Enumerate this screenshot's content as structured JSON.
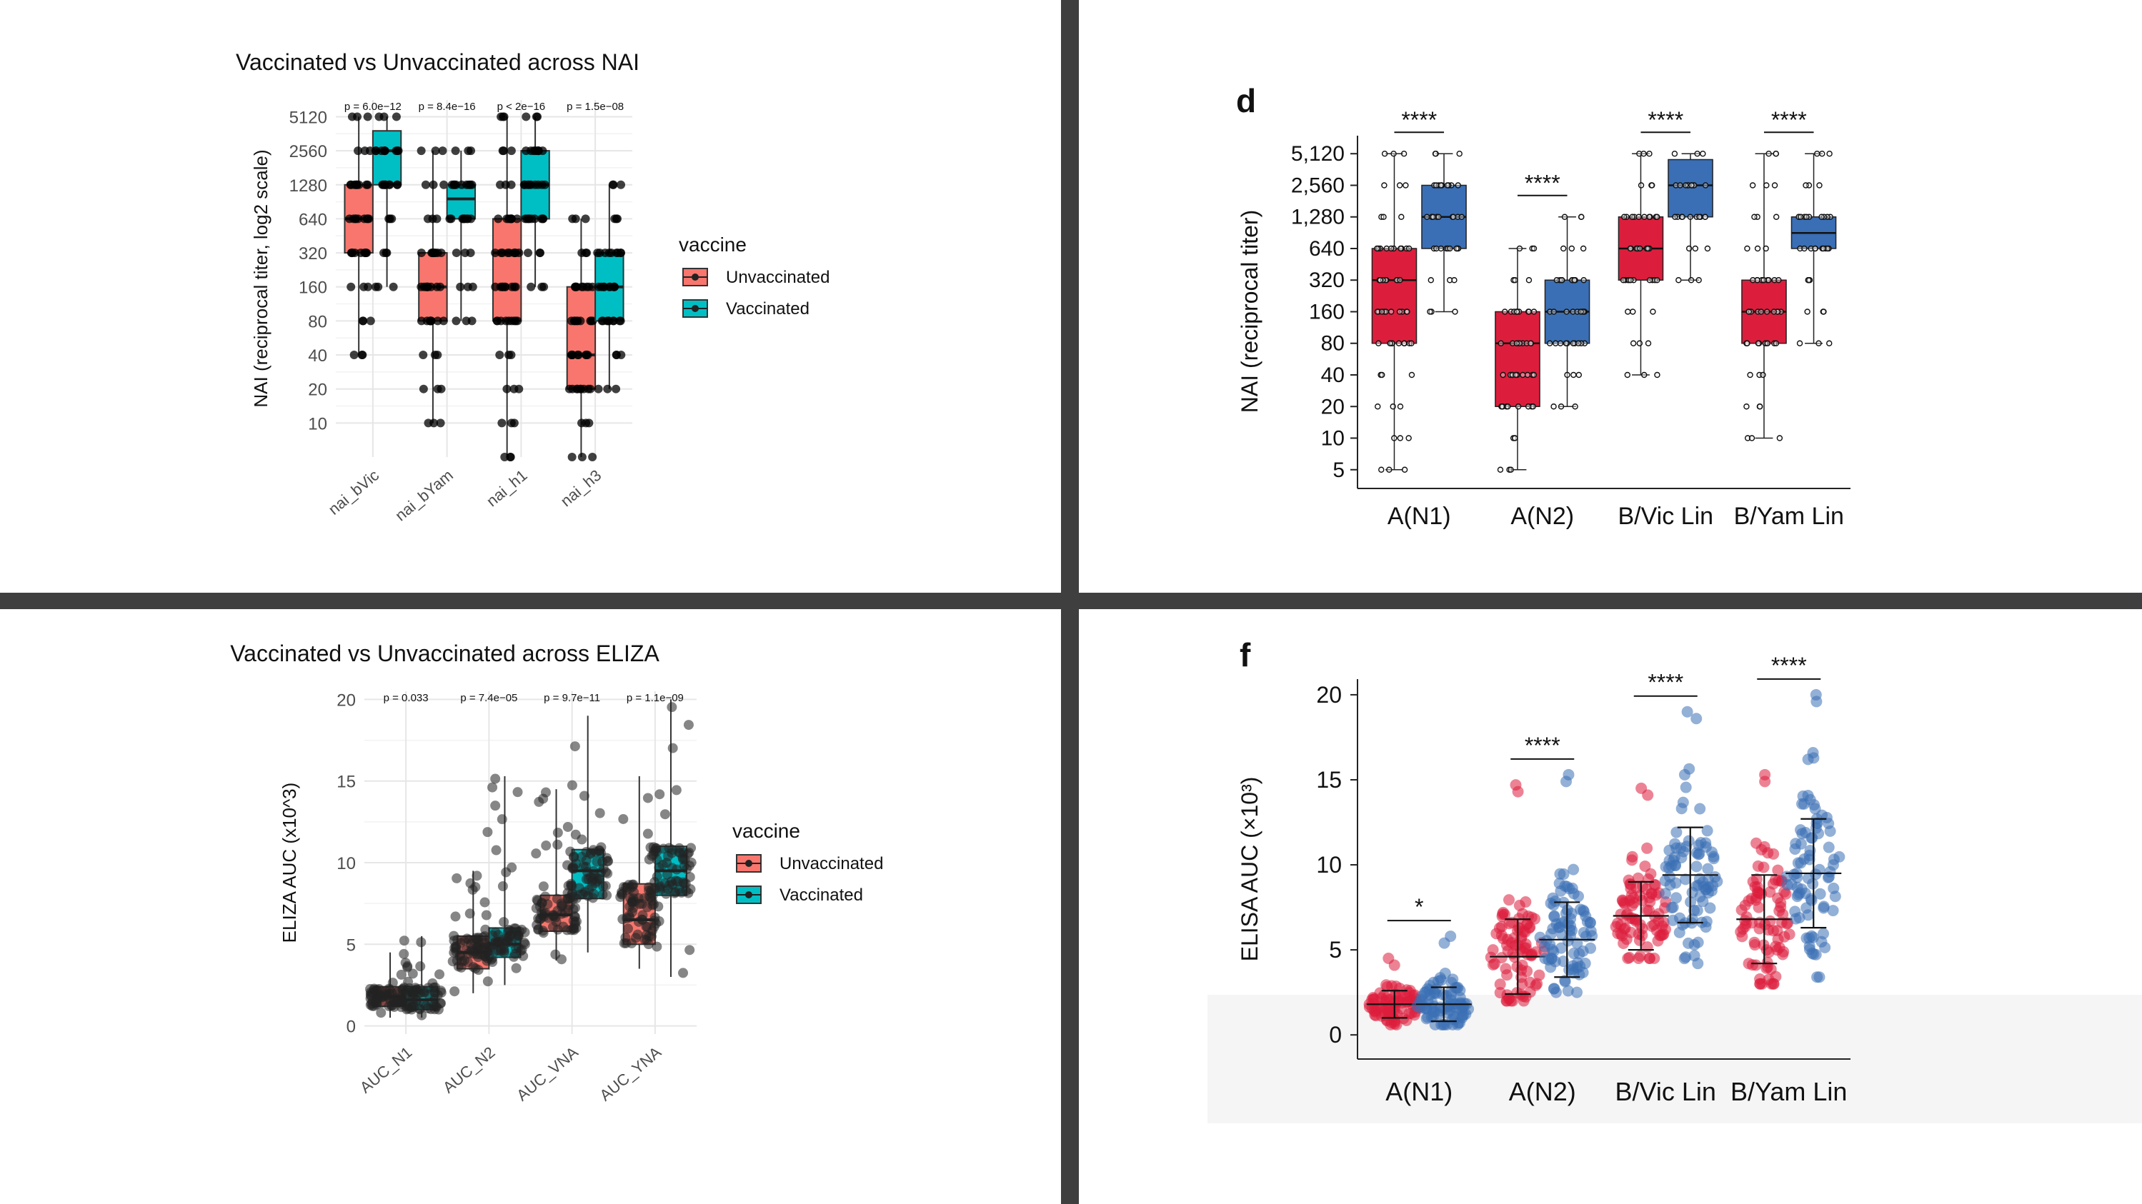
{
  "colors": {
    "r_unvacc": "#F8766D",
    "r_vacc": "#00BFC4",
    "pub_unvacc": "#DC1E3C",
    "pub_vacc": "#3A6FB5",
    "divider": "#3f3f3f"
  },
  "chart_data": [
    {
      "id": "nai_r",
      "type": "box",
      "title": "Vaccinated vs Unvaccinated across NAI",
      "ylabel": "NAI (reciprocal titer, log2 scale)",
      "yscale": "log2",
      "yticks": [
        10,
        20,
        40,
        80,
        160,
        320,
        640,
        1280,
        2560,
        5120
      ],
      "ytick_labels": [
        "10",
        "20",
        "40",
        "80",
        "160",
        "320",
        "640",
        "1280",
        "2560",
        "5120"
      ],
      "ylim": [
        5,
        7200
      ],
      "categories": [
        "nai_bVic",
        "nai_bYam",
        "nai_h1",
        "nai_h3"
      ],
      "pvalues": [
        "p = 6.0e−12",
        "p = 8.4e−16",
        "p < 2e−16",
        "p = 1.5e−08"
      ],
      "legend_title": "vaccine",
      "legend": [
        "Unvaccinated",
        "Vaccinated"
      ],
      "series": [
        {
          "name": "Unvaccinated",
          "boxes": [
            {
              "min": 40,
              "q1": 320,
              "med": 640,
              "q3": 1280,
              "max": 5120
            },
            {
              "min": 10,
              "q1": 80,
              "med": 160,
              "q3": 320,
              "max": 2560
            },
            {
              "min": 5,
              "q1": 80,
              "med": 320,
              "q3": 640,
              "max": 5120
            },
            {
              "min": 5,
              "q1": 20,
              "med": 40,
              "q3": 160,
              "max": 640
            }
          ]
        },
        {
          "name": "Vaccinated",
          "boxes": [
            {
              "min": 160,
              "q1": 1280,
              "med": 2560,
              "q3": 3840,
              "max": 5120
            },
            {
              "min": 80,
              "q1": 640,
              "med": 960,
              "q3": 1280,
              "max": 2560
            },
            {
              "min": 160,
              "q1": 640,
              "med": 1280,
              "q3": 2560,
              "max": 5120
            },
            {
              "min": 20,
              "q1": 80,
              "med": 160,
              "q3": 320,
              "max": 1280
            }
          ]
        }
      ]
    },
    {
      "id": "nai_pub",
      "type": "box",
      "panel_letter": "d",
      "ylabel": "NAI (reciprocal titer)",
      "yscale": "log2",
      "yticks": [
        5,
        10,
        20,
        40,
        80,
        160,
        320,
        640,
        1280,
        2560,
        5120
      ],
      "ytick_labels": [
        "5",
        "10",
        "20",
        "40",
        "80",
        "160",
        "320",
        "640",
        "1,280",
        "2,560",
        "5,120"
      ],
      "ylim": [
        4,
        6500
      ],
      "categories": [
        "A(N1)",
        "A(N2)",
        "B/Vic Lin",
        "B/Yam Lin"
      ],
      "significance": [
        "****",
        "****",
        "****",
        "****"
      ],
      "series": [
        {
          "name": "Unvaccinated",
          "boxes": [
            {
              "min": 5,
              "q1": 80,
              "med": 320,
              "q3": 640,
              "max": 5120
            },
            {
              "min": 5,
              "q1": 20,
              "med": 80,
              "q3": 160,
              "max": 640
            },
            {
              "min": 40,
              "q1": 320,
              "med": 640,
              "q3": 1280,
              "max": 5120
            },
            {
              "min": 10,
              "q1": 80,
              "med": 160,
              "q3": 320,
              "max": 5120
            }
          ]
        },
        {
          "name": "Vaccinated",
          "boxes": [
            {
              "min": 160,
              "q1": 640,
              "med": 1280,
              "q3": 2560,
              "max": 5120
            },
            {
              "min": 20,
              "q1": 80,
              "med": 160,
              "q3": 320,
              "max": 1280
            },
            {
              "min": 320,
              "q1": 1280,
              "med": 2560,
              "q3": 4500,
              "max": 5120
            },
            {
              "min": 80,
              "q1": 640,
              "med": 900,
              "q3": 1280,
              "max": 5120
            }
          ]
        }
      ]
    },
    {
      "id": "eliza_r",
      "type": "box",
      "title": "Vaccinated vs Unvaccinated across ELIZA",
      "ylabel": "ELIZA AUC (x10^3)",
      "yscale": "linear",
      "yticks": [
        0,
        5,
        10,
        15,
        20
      ],
      "ytick_labels": [
        "0",
        "5",
        "10",
        "15",
        "20"
      ],
      "ylim": [
        -0.5,
        20.5
      ],
      "categories": [
        "AUC_N1",
        "AUC_N2",
        "AUC_VNA",
        "AUC_YNA"
      ],
      "pvalues": [
        "p = 0.033",
        "p = 7.4e−05",
        "p = 9.7e−11",
        "p = 1.1e−09"
      ],
      "legend_title": "vaccine",
      "legend": [
        "Unvaccinated",
        "Vaccinated"
      ],
      "series": [
        {
          "name": "Unvaccinated",
          "boxes": [
            {
              "min": 0.5,
              "q1": 1.2,
              "med": 1.8,
              "q3": 2.4,
              "max": 4.5
            },
            {
              "min": 2.0,
              "q1": 3.5,
              "med": 4.5,
              "q3": 5.5,
              "max": 9.5
            },
            {
              "min": 4.0,
              "q1": 5.8,
              "med": 6.8,
              "q3": 8.0,
              "max": 14.5
            },
            {
              "min": 3.5,
              "q1": 5.0,
              "med": 6.5,
              "q3": 8.7,
              "max": 15.3
            }
          ]
        },
        {
          "name": "Vaccinated",
          "boxes": [
            {
              "min": 0.5,
              "q1": 1.0,
              "med": 1.6,
              "q3": 2.4,
              "max": 5.5
            },
            {
              "min": 2.5,
              "q1": 4.2,
              "med": 5.0,
              "q3": 6.0,
              "max": 15.3
            },
            {
              "min": 4.5,
              "q1": 7.8,
              "med": 9.5,
              "q3": 10.8,
              "max": 19.0
            },
            {
              "min": 3.0,
              "q1": 8.0,
              "med": 9.5,
              "q3": 11.0,
              "max": 20.0
            }
          ]
        }
      ]
    },
    {
      "id": "elisa_pub",
      "type": "scatter",
      "panel_letter": "f",
      "ylabel": "ELISA AUC (×10³)",
      "yscale": "linear",
      "yticks": [
        0,
        5,
        10,
        15,
        20
      ],
      "ytick_labels": [
        "0",
        "5",
        "10",
        "15",
        "20"
      ],
      "ylim": [
        -1,
        20.5
      ],
      "categories": [
        "A(N1)",
        "A(N2)",
        "B/Vic Lin",
        "B/Yam Lin"
      ],
      "significance": [
        "*",
        "****",
        "****",
        "****"
      ],
      "series": [
        {
          "name": "Unvaccinated",
          "groups": [
            {
              "mean": 1.8,
              "sd": 0.8,
              "min": 0.6,
              "max": 4.5
            },
            {
              "mean": 4.6,
              "sd": 2.2,
              "min": 2.0,
              "max": 14.7
            },
            {
              "mean": 7.0,
              "sd": 2.0,
              "min": 4.5,
              "max": 14.5
            },
            {
              "mean": 6.8,
              "sd": 2.6,
              "min": 3.0,
              "max": 15.3
            }
          ]
        },
        {
          "name": "Vaccinated",
          "groups": [
            {
              "mean": 1.8,
              "sd": 1.0,
              "min": 0.6,
              "max": 5.8
            },
            {
              "mean": 5.6,
              "sd": 2.2,
              "min": 2.5,
              "max": 15.3
            },
            {
              "mean": 9.4,
              "sd": 2.8,
              "min": 4.2,
              "max": 19.0
            },
            {
              "mean": 9.5,
              "sd": 3.2,
              "min": 3.4,
              "max": 20.0
            }
          ]
        }
      ]
    }
  ]
}
